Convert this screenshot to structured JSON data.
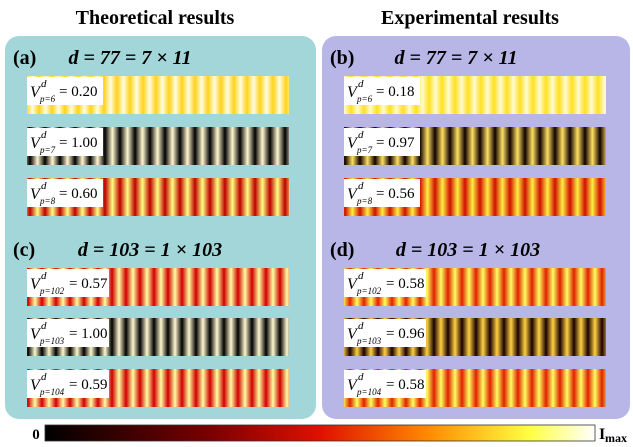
{
  "headers": [
    "Theoretical results",
    "Experimental results"
  ],
  "panels": [
    {
      "label": "(a)",
      "title": "d = 77 = 7 × 11",
      "rows": [
        {
          "symbol": "V",
          "sup": "d",
          "sub": "p=6",
          "text": "= 0.20"
        },
        {
          "symbol": "V",
          "sup": "d",
          "sub": "p=7",
          "text": "= 1.00"
        },
        {
          "symbol": "V",
          "sup": "d",
          "sub": "p=8",
          "text": "= 0.60"
        }
      ]
    },
    {
      "label": "(b)",
      "title": "d = 77 = 7 × 11",
      "rows": [
        {
          "symbol": "V",
          "sup": "d",
          "sub": "p=6",
          "text": "= 0.18"
        },
        {
          "symbol": "V",
          "sup": "d",
          "sub": "p=7",
          "text": "= 0.97"
        },
        {
          "symbol": "V",
          "sup": "d",
          "sub": "p=8",
          "text": "= 0.56"
        }
      ]
    },
    {
      "label": "(c)",
      "title": "d = 103 = 1 × 103",
      "rows": [
        {
          "symbol": "V",
          "sup": "d",
          "sub": "p=102",
          "text": "= 0.57"
        },
        {
          "symbol": "V",
          "sup": "d",
          "sub": "p=103",
          "text": "= 1.00"
        },
        {
          "symbol": "V",
          "sup": "d",
          "sub": "p=104",
          "text": "= 0.59"
        }
      ]
    },
    {
      "label": "(d)",
      "title": "d = 103 = 1 × 103",
      "rows": [
        {
          "symbol": "V",
          "sup": "d",
          "sub": "p=102",
          "text": "= 0.58"
        },
        {
          "symbol": "V",
          "sup": "d",
          "sub": "p=103",
          "text": "= 0.96"
        },
        {
          "symbol": "V",
          "sup": "d",
          "sub": "p=104",
          "text": "= 0.58"
        }
      ]
    }
  ],
  "colorbar": {
    "min": "0",
    "max": "I",
    "max_sub": "max"
  }
}
